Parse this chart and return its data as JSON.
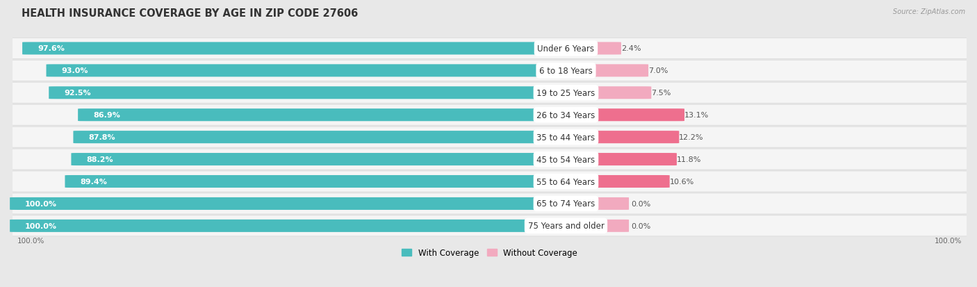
{
  "title": "HEALTH INSURANCE COVERAGE BY AGE IN ZIP CODE 27606",
  "source": "Source: ZipAtlas.com",
  "categories": [
    "Under 6 Years",
    "6 to 18 Years",
    "19 to 25 Years",
    "26 to 34 Years",
    "35 to 44 Years",
    "45 to 54 Years",
    "55 to 64 Years",
    "65 to 74 Years",
    "75 Years and older"
  ],
  "with_coverage": [
    97.6,
    93.0,
    92.5,
    86.9,
    87.8,
    88.2,
    89.4,
    100.0,
    100.0
  ],
  "without_coverage": [
    2.4,
    7.0,
    7.5,
    13.1,
    12.2,
    11.8,
    10.6,
    0.0,
    0.0
  ],
  "with_coverage_labels": [
    "97.6%",
    "93.0%",
    "92.5%",
    "86.9%",
    "87.8%",
    "88.2%",
    "89.4%",
    "100.0%",
    "100.0%"
  ],
  "without_coverage_labels": [
    "2.4%",
    "7.0%",
    "7.5%",
    "13.1%",
    "12.2%",
    "11.8%",
    "10.6%",
    "0.0%",
    "0.0%"
  ],
  "color_with": "#49BCBD",
  "color_without_dark": "#EE6F8E",
  "color_without_light": "#F2AABF",
  "bg_color": "#e8e8e8",
  "row_bg": "#f0f0f0",
  "title_fontsize": 10.5,
  "label_fontsize": 8.5,
  "pct_fontsize": 8.0,
  "legend_fontsize": 8.5,
  "x_axis_left": "100.0%",
  "x_axis_right": "100.0%"
}
